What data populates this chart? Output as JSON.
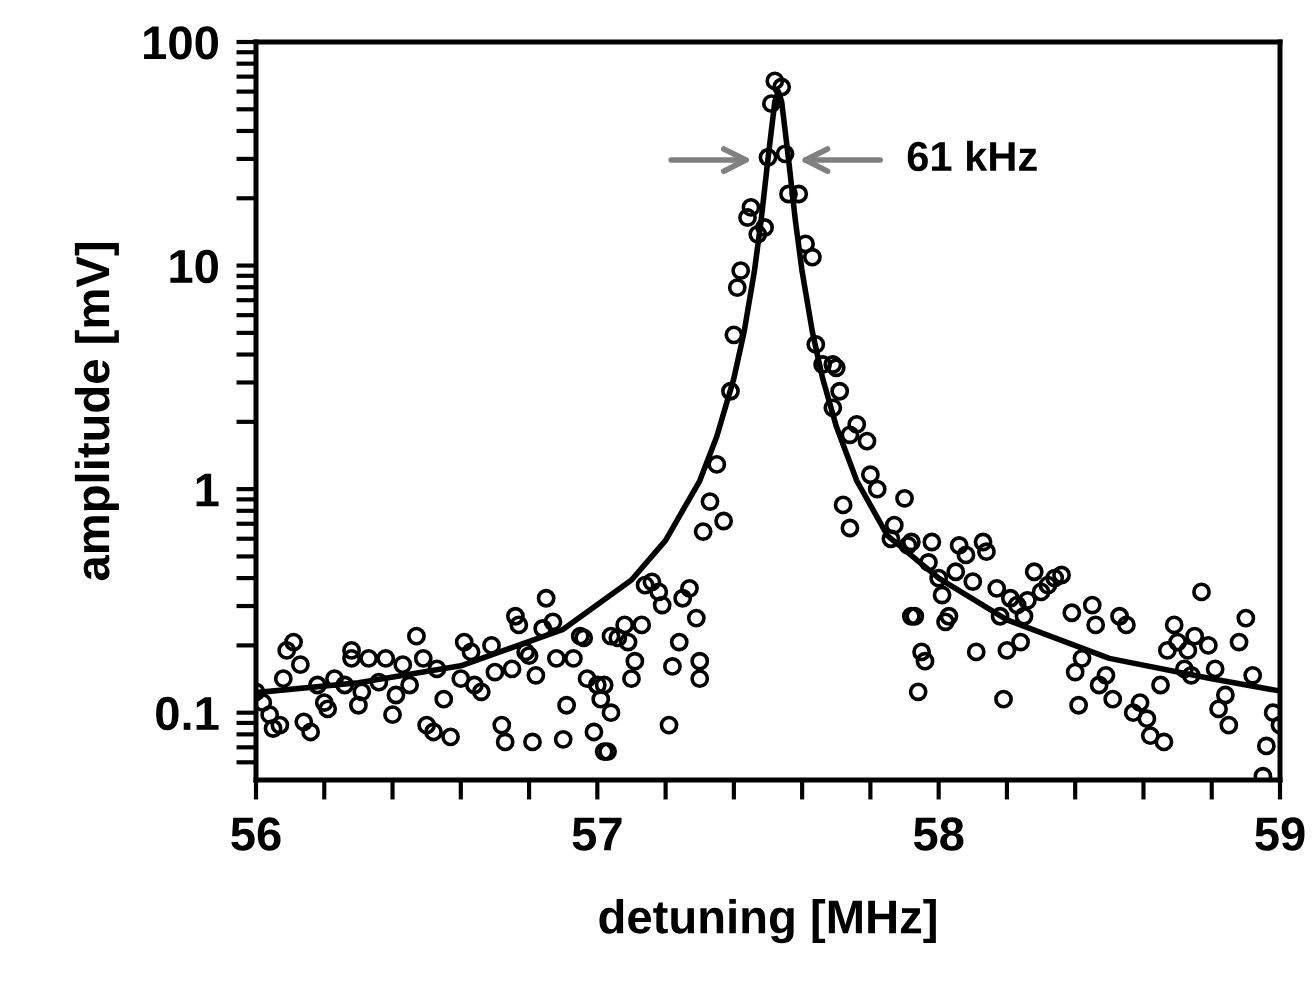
{
  "chart_data": {
    "type": "scatter",
    "xlabel": "detuning [MHz]",
    "ylabel": "amplitude [mV]",
    "log": "y",
    "grid": false,
    "legend": false,
    "xlim": [
      56,
      59
    ],
    "ylim": [
      0.05,
      100
    ],
    "xticks": [
      56,
      {
        "value": 56.2,
        "label": null
      },
      {
        "value": 56.4,
        "label": null
      },
      {
        "value": 56.6,
        "label": null
      },
      {
        "value": 56.8,
        "label": null
      },
      57,
      {
        "value": 57.2,
        "label": null
      },
      {
        "value": 57.4,
        "label": null
      },
      {
        "value": 57.6,
        "label": null
      },
      {
        "value": 57.8,
        "label": null
      },
      58,
      {
        "value": 58.2,
        "label": null
      },
      {
        "value": 58.4,
        "label": null
      },
      {
        "value": 58.6,
        "label": null
      },
      {
        "value": 58.8,
        "label": null
      },
      59
    ],
    "yticks": [
      {
        "value": 0.06,
        "label": null
      },
      {
        "value": 0.07,
        "label": null
      },
      {
        "value": 0.08,
        "label": null
      },
      {
        "value": 0.09,
        "label": null
      },
      0.1,
      {
        "value": 0.2,
        "label": null
      },
      {
        "value": 0.3,
        "label": null
      },
      {
        "value": 0.4,
        "label": null
      },
      {
        "value": 0.5,
        "label": null
      },
      {
        "value": 0.6,
        "label": null
      },
      {
        "value": 0.7,
        "label": null
      },
      {
        "value": 0.8,
        "label": null
      },
      {
        "value": 0.9,
        "label": null
      },
      1,
      {
        "value": 2,
        "label": null
      },
      {
        "value": 3,
        "label": null
      },
      {
        "value": 4,
        "label": null
      },
      {
        "value": 5,
        "label": null
      },
      {
        "value": 6,
        "label": null
      },
      {
        "value": 7,
        "label": null
      },
      {
        "value": 8,
        "label": null
      },
      {
        "value": 9,
        "label": null
      },
      10,
      {
        "value": 20,
        "label": null
      },
      {
        "value": 30,
        "label": null
      },
      {
        "value": 40,
        "label": null
      },
      {
        "value": 50,
        "label": null
      },
      {
        "value": 60,
        "label": null
      },
      {
        "value": 70,
        "label": null
      },
      {
        "value": 80,
        "label": null
      },
      {
        "value": 90,
        "label": null
      },
      100
    ],
    "annotations": [
      "61 kHz"
    ],
    "series": [
      {
        "marker": "circle",
        "color": "#000000",
        "x": [
          56.0,
          56.02,
          56.04,
          56.05,
          56.07,
          56.08,
          56.09,
          56.11,
          56.13,
          56.14,
          56.16,
          56.18,
          56.2,
          56.21,
          56.23,
          56.26,
          56.28,
          56.28,
          56.3,
          56.31,
          56.33,
          56.36,
          56.38,
          56.4,
          56.41,
          56.43,
          56.45,
          56.47,
          56.49,
          56.5,
          56.52,
          56.53,
          56.55,
          56.57,
          56.6,
          56.61,
          56.63,
          56.64,
          56.66,
          56.69,
          56.7,
          56.72,
          56.73,
          56.75,
          56.76,
          56.77,
          56.79,
          56.8,
          56.81,
          56.82,
          56.84,
          56.85,
          56.87,
          56.88,
          56.9,
          56.91,
          56.93,
          56.95,
          56.96,
          56.97,
          56.99,
          57.0,
          57.01,
          57.02,
          57.04,
          57.02,
          57.04,
          57.03,
          57.06,
          57.08,
          57.09,
          57.1,
          57.11,
          57.13,
          57.14,
          57.16,
          57.18,
          57.19,
          57.21,
          57.22,
          57.24,
          57.25,
          57.27,
          57.29,
          57.3,
          57.3,
          57.31,
          57.33,
          57.35,
          57.37,
          57.39,
          57.4,
          57.41,
          57.42,
          57.44,
          57.45,
          57.47,
          57.49,
          57.5,
          57.51,
          57.52,
          57.54,
          57.55,
          57.56,
          57.59,
          57.61,
          57.63,
          57.64,
          57.66,
          57.69,
          57.7,
          57.69,
          57.71,
          57.74,
          57.76,
          57.79,
          57.72,
          57.74,
          57.8,
          57.82,
          57.86,
          57.87,
          57.9,
          57.91,
          57.93,
          57.95,
          57.96,
          57.94,
          57.97,
          57.98,
          57.92,
          57.92,
          58.0,
          58.01,
          58.02,
          58.03,
          58.05,
          58.06,
          58.08,
          58.1,
          58.11,
          58.13,
          58.14,
          58.17,
          58.18,
          58.19,
          58.2,
          58.21,
          58.23,
          58.24,
          58.25,
          58.26,
          58.28,
          58.3,
          58.32,
          58.34,
          58.36,
          58.39,
          58.4,
          58.41,
          58.42,
          58.45,
          58.46,
          58.47,
          58.49,
          58.51,
          58.53,
          58.55,
          58.57,
          58.59,
          58.61,
          58.62,
          58.65,
          58.66,
          58.67,
          58.69,
          58.7,
          58.72,
          58.73,
          58.74,
          58.75,
          58.77,
          58.79,
          58.81,
          58.82,
          58.84,
          58.85,
          58.88,
          58.9,
          58.92,
          58.95,
          58.96,
          58.98,
          59.0
        ],
        "values": [
          0.124,
          0.111,
          0.098,
          0.085,
          0.088,
          0.142,
          0.19,
          0.207,
          0.164,
          0.091,
          0.082,
          0.133,
          0.111,
          0.104,
          0.142,
          0.133,
          0.19,
          0.175,
          0.108,
          0.124,
          0.175,
          0.137,
          0.175,
          0.098,
          0.12,
          0.164,
          0.133,
          0.22,
          0.175,
          0.088,
          0.082,
          0.157,
          0.115,
          0.078,
          0.142,
          0.207,
          0.187,
          0.133,
          0.124,
          0.2,
          0.152,
          0.088,
          0.074,
          0.157,
          0.27,
          0.247,
          0.187,
          0.18,
          0.074,
          0.147,
          0.238,
          0.325,
          0.255,
          0.175,
          0.076,
          0.108,
          0.175,
          0.22,
          0.216,
          0.142,
          0.082,
          0.133,
          0.115,
          0.067,
          0.22,
          0.133,
          0.1,
          0.067,
          0.216,
          0.247,
          0.207,
          0.142,
          0.17,
          0.247,
          0.372,
          0.385,
          0.347,
          0.303,
          0.088,
          0.161,
          0.207,
          0.325,
          0.36,
          0.265,
          0.142,
          0.17,
          0.646,
          0.88,
          1.29,
          0.72,
          2.74,
          4.9,
          7.97,
          9.5,
          16.4,
          18.2,
          13.8,
          14.8,
          30.5,
          53,
          67,
          62.9,
          31.6,
          20.9,
          20.9,
          12.5,
          10.9,
          4.44,
          3.61,
          3.61,
          3.49,
          2.31,
          2.74,
          1.75,
          1.95,
          1.64,
          0.85,
          0.67,
          1.16,
          1.0,
          0.6,
          0.69,
          0.91,
          0.56,
          0.27,
          0.187,
          0.17,
          0.124,
          0.47,
          0.58,
          0.58,
          0.27,
          0.4,
          0.336,
          0.255,
          0.27,
          0.427,
          0.56,
          0.508,
          0.386,
          0.187,
          0.58,
          0.525,
          0.36,
          0.27,
          0.115,
          0.19,
          0.325,
          0.303,
          0.207,
          0.27,
          0.318,
          0.427,
          0.347,
          0.372,
          0.4,
          0.413,
          0.28,
          0.152,
          0.108,
          0.175,
          0.303,
          0.247,
          0.133,
          0.147,
          0.115,
          0.27,
          0.247,
          0.1,
          0.111,
          0.094,
          0.079,
          0.133,
          0.074,
          0.19,
          0.247,
          0.207,
          0.157,
          0.19,
          0.147,
          0.22,
          0.347,
          0.2,
          0.157,
          0.104,
          0.12,
          0.088,
          0.207,
          0.265,
          0.147,
          0.052,
          0.071,
          0.1,
          0.088
        ]
      },
      {
        "type": "line",
        "color": "#000000",
        "x": [
          56,
          56.3,
          56.6,
          56.9,
          57.1,
          57.2,
          57.3,
          57.35,
          57.4,
          57.43,
          57.46,
          57.48,
          57.5,
          57.52,
          57.53,
          57.54,
          57.56,
          57.58,
          57.6,
          57.63,
          57.66,
          57.7,
          57.76,
          57.85,
          58.0,
          58.2,
          58.5,
          58.8,
          59
        ],
        "values": [
          0.123,
          0.136,
          0.162,
          0.236,
          0.392,
          0.59,
          1.09,
          1.72,
          3.13,
          5.05,
          9.4,
          16.0,
          30.1,
          54.1,
          60.1,
          54.1,
          30.1,
          16.0,
          9.4,
          5.05,
          3.13,
          1.91,
          1.09,
          0.62,
          0.4,
          0.26,
          0.175,
          0.142,
          0.125
        ]
      }
    ]
  }
}
